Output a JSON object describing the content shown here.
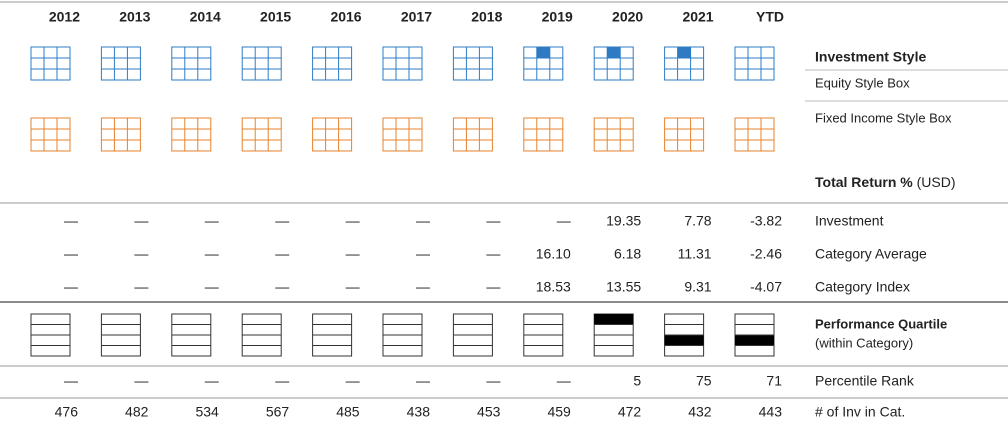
{
  "columns": [
    "2012",
    "2013",
    "2014",
    "2015",
    "2016",
    "2017",
    "2018",
    "2019",
    "2020",
    "2021",
    "YTD"
  ],
  "investment_style": {
    "title": "Investment Style",
    "equity_label": "Equity Style Box",
    "fixed_income_label": "Fixed Income Style Box",
    "equity_cell": [
      null,
      null,
      null,
      null,
      null,
      null,
      null,
      1,
      1,
      1,
      null
    ]
  },
  "total_return": {
    "title": "Total Return %",
    "unit": "(USD)",
    "rows": [
      {
        "label": "Investment",
        "values": [
          "—",
          "—",
          "—",
          "—",
          "—",
          "—",
          "—",
          "—",
          "19.35",
          "7.78",
          "-3.82"
        ]
      },
      {
        "label": "Category Average",
        "values": [
          "—",
          "—",
          "—",
          "—",
          "—",
          "—",
          "—",
          "16.10",
          "6.18",
          "11.31",
          "-2.46"
        ]
      },
      {
        "label": "Category Index",
        "values": [
          "—",
          "—",
          "—",
          "—",
          "—",
          "—",
          "—",
          "18.53",
          "13.55",
          "9.31",
          "-4.07"
        ]
      }
    ]
  },
  "quartile": {
    "title": "Performance Quartile",
    "subtitle": "(within Category)",
    "values": [
      null,
      null,
      null,
      null,
      null,
      null,
      null,
      null,
      1,
      3,
      3
    ]
  },
  "percentile_rank": {
    "label": "Percentile Rank",
    "values": [
      "—",
      "—",
      "—",
      "—",
      "—",
      "—",
      "—",
      "—",
      "5",
      "75",
      "71"
    ]
  },
  "count": {
    "label": "# of Inv in Cat.",
    "values": [
      "476",
      "482",
      "534",
      "567",
      "485",
      "438",
      "453",
      "459",
      "472",
      "432",
      "443"
    ]
  }
}
